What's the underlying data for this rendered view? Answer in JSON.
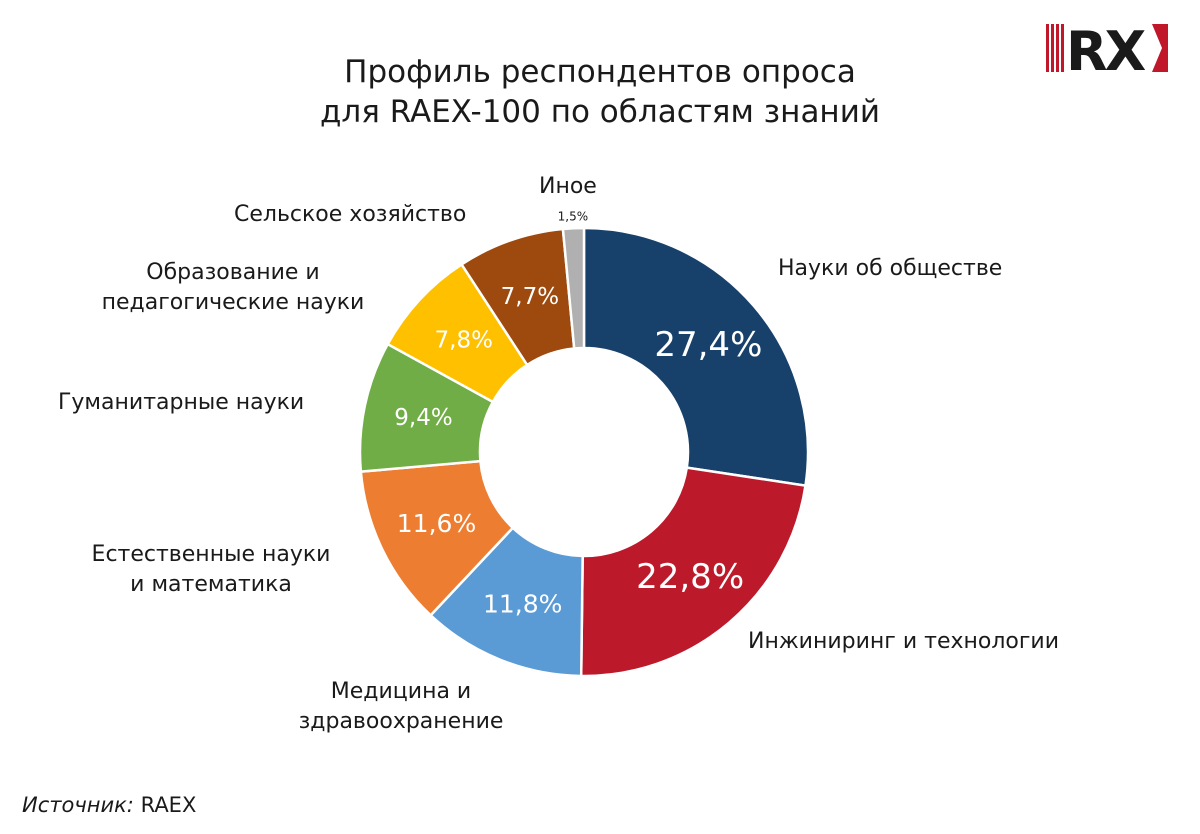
{
  "header": {
    "title_line1": "Профиль респондентов опроса",
    "title_line2": "для RAEX-100 по областям знаний"
  },
  "logo": {
    "text": "RX",
    "bar_color": "#c0182a",
    "text_color": "#1a1a1a"
  },
  "chart_data": {
    "type": "pie",
    "donut": true,
    "title": "Профиль респондентов опроса для RAEX-100 по областям знаний",
    "slices": [
      {
        "label": "Науки об обществе",
        "value": 27.4,
        "value_label": "27,4%",
        "color": "#17416b"
      },
      {
        "label": "Инжиниринг и технологии",
        "value": 22.8,
        "value_label": "22,8%",
        "color": "#bc1a2b"
      },
      {
        "label": "Медицина и здравоохранение",
        "value": 11.8,
        "value_label": "11,8%",
        "color": "#5b9bd5"
      },
      {
        "label": "Естественные науки и математика",
        "value": 11.6,
        "value_label": "11,6%",
        "color": "#ed7d31"
      },
      {
        "label": "Гуманитарные науки",
        "value": 9.4,
        "value_label": "9,4%",
        "color": "#70ad47"
      },
      {
        "label": "Образование и педагогические науки",
        "value": 7.8,
        "value_label": "7,8%",
        "color": "#ffc000"
      },
      {
        "label": "Сельское хозяйство",
        "value": 7.7,
        "value_label": "7,7%",
        "color": "#9e4a0f"
      },
      {
        "label": "Иное",
        "value": 1.5,
        "value_label": "1,5%",
        "color": "#b0b0b0"
      }
    ]
  },
  "labels": {
    "social": "Науки об обществе",
    "engineering": "Инжиниринг и технологии",
    "medicine_line1": "Медицина и",
    "medicine_line2": "здравоохранение",
    "natural_line1": "Естественные науки",
    "natural_line2": "и математика",
    "humanities": "Гуманитарные науки",
    "education_line1": "Образование и",
    "education_line2": "педагогические науки",
    "agriculture": "Сельское хозяйство",
    "other": "Иное"
  },
  "footer": {
    "source_prefix": "Источник:",
    "source_name": "RAEX"
  }
}
